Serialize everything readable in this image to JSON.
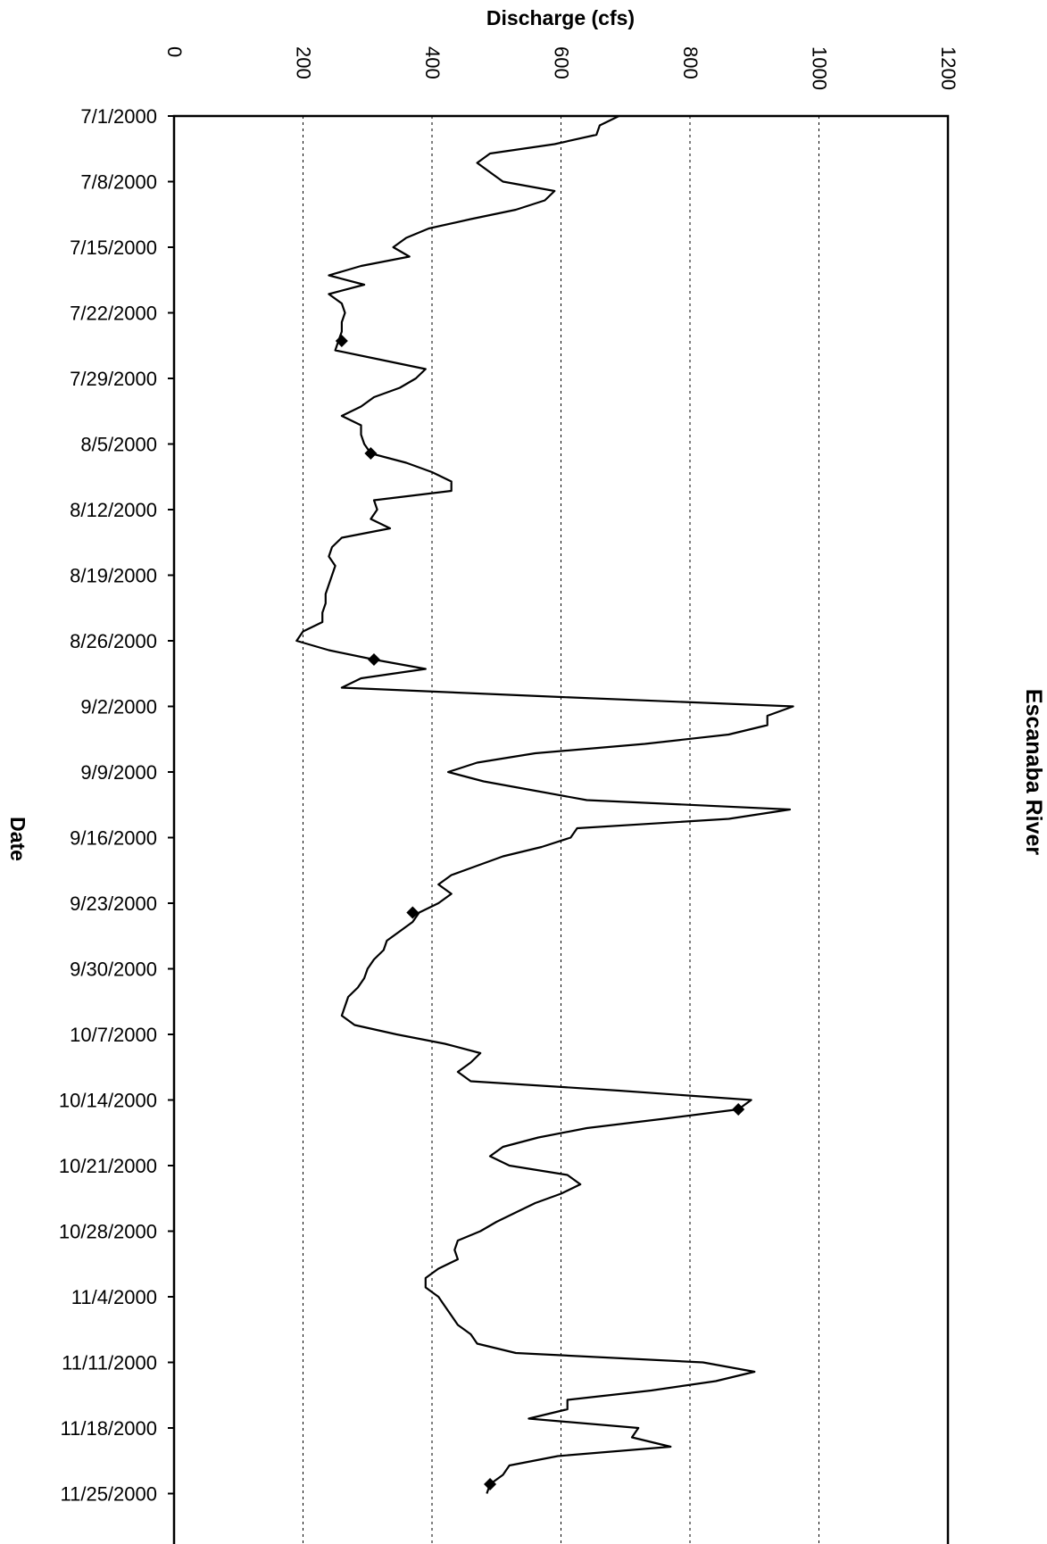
{
  "chart_data": {
    "type": "line",
    "title": "Escanaba River",
    "xlabel": "Discharge (cfs)",
    "ylabel": "Date",
    "orientation": "rotated: date axis vertical (left), discharge axis horizontal (top)",
    "xlim": [
      0,
      1200
    ],
    "xticks": [
      0,
      200,
      400,
      600,
      800,
      1000,
      1200
    ],
    "xtick_labels": [
      "0",
      "200",
      "400",
      "600",
      "800",
      "1000",
      "1200"
    ],
    "date_ticks": [
      "7/1/2000",
      "7/8/2000",
      "7/15/2000",
      "7/22/2000",
      "7/29/2000",
      "8/5/2000",
      "8/12/2000",
      "8/19/2000",
      "8/26/2000",
      "9/2/2000",
      "9/9/2000",
      "9/16/2000",
      "9/23/2000",
      "9/30/2000",
      "10/7/2000",
      "10/14/2000",
      "10/21/2000",
      "10/28/2000",
      "11/4/2000",
      "11/11/2000",
      "11/18/2000",
      "11/25/2000"
    ],
    "date_range": [
      "7/1/2000",
      "11/29/2000"
    ],
    "grid": "vertical dashed gridlines at each discharge tick",
    "legend": "none",
    "series": [
      {
        "style": "black line",
        "points": [
          [
            "7/1/2000",
            690
          ],
          [
            "7/2/2000",
            660
          ],
          [
            "7/3/2000",
            655
          ],
          [
            "7/4/2000",
            590
          ],
          [
            "7/5/2000",
            490
          ],
          [
            "7/6/2000",
            470
          ],
          [
            "7/7/2000",
            490
          ],
          [
            "7/8/2000",
            510
          ],
          [
            "7/9/2000",
            590
          ],
          [
            "7/10/2000",
            575
          ],
          [
            "7/11/2000",
            530
          ],
          [
            "7/12/2000",
            460
          ],
          [
            "7/13/2000",
            395
          ],
          [
            "7/14/2000",
            360
          ],
          [
            "7/15/2000",
            340
          ],
          [
            "7/16/2000",
            365
          ],
          [
            "7/17/2000",
            290
          ],
          [
            "7/18/2000",
            240
          ],
          [
            "7/19/2000",
            295
          ],
          [
            "7/20/2000",
            240
          ],
          [
            "7/21/2000",
            260
          ],
          [
            "7/22/2000",
            265
          ],
          [
            "7/23/2000",
            260
          ],
          [
            "7/24/2000",
            260
          ],
          [
            "7/25/2000",
            255
          ],
          [
            "7/26/2000",
            250
          ],
          [
            "7/27/2000",
            320
          ],
          [
            "7/28/2000",
            390
          ],
          [
            "7/29/2000",
            375
          ],
          [
            "7/30/2000",
            350
          ],
          [
            "7/31/2000",
            310
          ],
          [
            "8/1/2000",
            290
          ],
          [
            "8/2/2000",
            260
          ],
          [
            "8/3/2000",
            290
          ],
          [
            "8/4/2000",
            290
          ],
          [
            "8/5/2000",
            295
          ],
          [
            "8/6/2000",
            305
          ],
          [
            "8/7/2000",
            360
          ],
          [
            "8/8/2000",
            400
          ],
          [
            "8/9/2000",
            430
          ],
          [
            "8/10/2000",
            430
          ],
          [
            "8/11/2000",
            310
          ],
          [
            "8/12/2000",
            315
          ],
          [
            "8/13/2000",
            305
          ],
          [
            "8/14/2000",
            335
          ],
          [
            "8/15/2000",
            260
          ],
          [
            "8/16/2000",
            245
          ],
          [
            "8/17/2000",
            240
          ],
          [
            "8/18/2000",
            250
          ],
          [
            "8/19/2000",
            245
          ],
          [
            "8/20/2000",
            240
          ],
          [
            "8/21/2000",
            235
          ],
          [
            "8/22/2000",
            235
          ],
          [
            "8/23/2000",
            230
          ],
          [
            "8/24/2000",
            230
          ],
          [
            "8/25/2000",
            200
          ],
          [
            "8/26/2000",
            190
          ],
          [
            "8/27/2000",
            240
          ],
          [
            "8/28/2000",
            310
          ],
          [
            "8/29/2000",
            390
          ],
          [
            "8/30/2000",
            290
          ],
          [
            "8/31/2000",
            260
          ],
          [
            "9/1/2000",
            600
          ],
          [
            "9/2/2000",
            960
          ],
          [
            "9/3/2000",
            920
          ],
          [
            "9/4/2000",
            920
          ],
          [
            "9/5/2000",
            860
          ],
          [
            "9/6/2000",
            730
          ],
          [
            "9/7/2000",
            560
          ],
          [
            "9/8/2000",
            470
          ],
          [
            "9/9/2000",
            425
          ],
          [
            "9/10/2000",
            480
          ],
          [
            "9/11/2000",
            560
          ],
          [
            "9/12/2000",
            640
          ],
          [
            "9/13/2000",
            955
          ],
          [
            "9/14/2000",
            860
          ],
          [
            "9/15/2000",
            625
          ],
          [
            "9/16/2000",
            615
          ],
          [
            "9/17/2000",
            570
          ],
          [
            "9/18/2000",
            510
          ],
          [
            "9/19/2000",
            470
          ],
          [
            "9/20/2000",
            430
          ],
          [
            "9/21/2000",
            410
          ],
          [
            "9/22/2000",
            430
          ],
          [
            "9/23/2000",
            410
          ],
          [
            "9/24/2000",
            380
          ],
          [
            "9/25/2000",
            370
          ],
          [
            "9/26/2000",
            350
          ],
          [
            "9/27/2000",
            330
          ],
          [
            "9/28/2000",
            325
          ],
          [
            "9/29/2000",
            310
          ],
          [
            "9/30/2000",
            300
          ],
          [
            "10/1/2000",
            295
          ],
          [
            "10/2/2000",
            285
          ],
          [
            "10/3/2000",
            270
          ],
          [
            "10/4/2000",
            265
          ],
          [
            "10/5/2000",
            260
          ],
          [
            "10/6/2000",
            280
          ],
          [
            "10/7/2000",
            345
          ],
          [
            "10/8/2000",
            420
          ],
          [
            "10/9/2000",
            475
          ],
          [
            "10/10/2000",
            460
          ],
          [
            "10/11/2000",
            440
          ],
          [
            "10/12/2000",
            460
          ],
          [
            "10/13/2000",
            690
          ],
          [
            "10/14/2000",
            895
          ],
          [
            "10/15/2000",
            875
          ],
          [
            "10/16/2000",
            760
          ],
          [
            "10/17/2000",
            640
          ],
          [
            "10/18/2000",
            565
          ],
          [
            "10/19/2000",
            510
          ],
          [
            "10/20/2000",
            490
          ],
          [
            "10/21/2000",
            520
          ],
          [
            "10/22/2000",
            610
          ],
          [
            "10/23/2000",
            630
          ],
          [
            "10/24/2000",
            600
          ],
          [
            "10/25/2000",
            560
          ],
          [
            "10/26/2000",
            530
          ],
          [
            "10/27/2000",
            500
          ],
          [
            "10/28/2000",
            475
          ],
          [
            "10/29/2000",
            440
          ],
          [
            "10/30/2000",
            435
          ],
          [
            "10/31/2000",
            440
          ],
          [
            "11/1/2000",
            410
          ],
          [
            "11/2/2000",
            390
          ],
          [
            "11/3/2000",
            390
          ],
          [
            "11/4/2000",
            410
          ],
          [
            "11/5/2000",
            420
          ],
          [
            "11/6/2000",
            430
          ],
          [
            "11/7/2000",
            440
          ],
          [
            "11/8/2000",
            460
          ],
          [
            "11/9/2000",
            470
          ],
          [
            "11/10/2000",
            530
          ],
          [
            "11/11/2000",
            820
          ],
          [
            "11/12/2000",
            900
          ],
          [
            "11/13/2000",
            840
          ],
          [
            "11/14/2000",
            740
          ],
          [
            "11/15/2000",
            610
          ],
          [
            "11/16/2000",
            610
          ],
          [
            "11/17/2000",
            550
          ],
          [
            "11/18/2000",
            720
          ],
          [
            "11/19/2000",
            710
          ],
          [
            "11/20/2000",
            770
          ],
          [
            "11/21/2000",
            595
          ],
          [
            "11/22/2000",
            520
          ],
          [
            "11/23/2000",
            510
          ],
          [
            "11/24/2000",
            490
          ],
          [
            "11/25/2000",
            485
          ]
        ]
      },
      {
        "style": "black diamond markers",
        "points": [
          [
            "7/25/2000",
            260
          ],
          [
            "8/6/2000",
            305
          ],
          [
            "8/28/2000",
            310
          ],
          [
            "9/24/2000",
            370
          ],
          [
            "10/15/2000",
            875
          ],
          [
            "11/24/2000",
            490
          ]
        ]
      }
    ]
  }
}
